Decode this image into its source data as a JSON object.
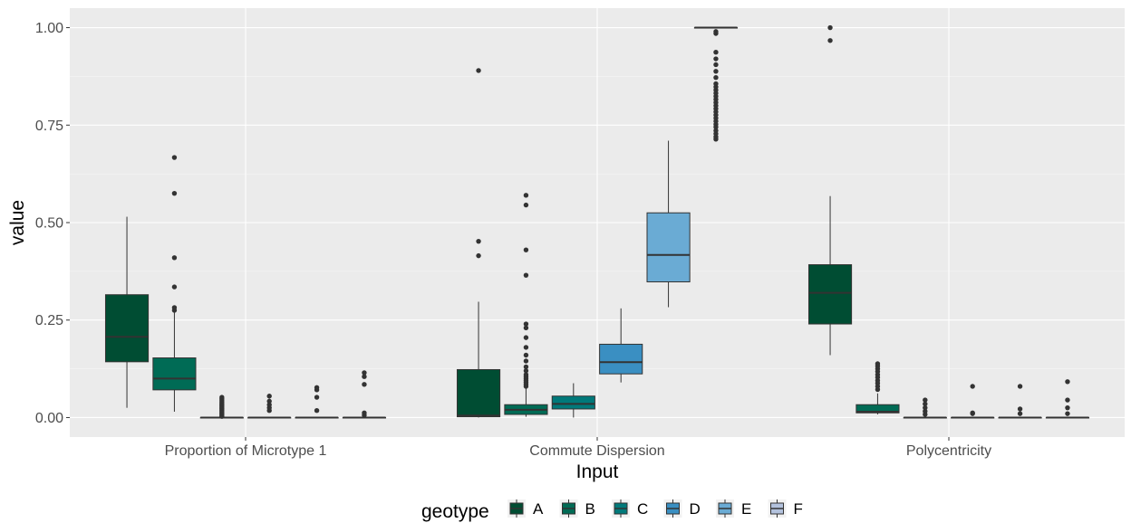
{
  "chart_data": {
    "type": "boxplot",
    "xlabel": "Input",
    "ylabel": "value",
    "ylim": [
      -0.05,
      1.05
    ],
    "yticks": [
      0.0,
      0.25,
      0.5,
      0.75,
      1.0
    ],
    "ytick_labels": [
      "0.00",
      "0.25",
      "0.50",
      "0.75",
      "1.00"
    ],
    "grid": true,
    "legend": {
      "title": "geotype",
      "position": "bottom"
    },
    "categories": [
      "Proportion of Microtype 1",
      "Commute Dispersion",
      "Polycentricity"
    ],
    "series": [
      {
        "name": "A",
        "color": "#004d33"
      },
      {
        "name": "B",
        "color": "#006b55"
      },
      {
        "name": "C",
        "color": "#00797a"
      },
      {
        "name": "D",
        "color": "#3a8fc2"
      },
      {
        "name": "E",
        "color": "#6aabd4"
      },
      {
        "name": "F",
        "color": "#b3c2dd"
      }
    ],
    "boxes": [
      {
        "category": "Proportion of Microtype 1",
        "series": "A",
        "whisker_low": 0.025,
        "q1": 0.143,
        "median": 0.207,
        "q3": 0.315,
        "whisker_high": 0.515,
        "outliers": []
      },
      {
        "category": "Proportion of Microtype 1",
        "series": "B",
        "whisker_low": 0.015,
        "q1": 0.071,
        "median": 0.1,
        "q3": 0.153,
        "whisker_high": 0.27,
        "outliers": [
          0.275,
          0.282,
          0.335,
          0.41,
          0.575,
          0.667
        ]
      },
      {
        "category": "Proportion of Microtype 1",
        "series": "C",
        "whisker_low": 0.0,
        "q1": 0.0,
        "median": 0.0,
        "q3": 0.0,
        "whisker_high": 0.0,
        "outliers": [
          0.003,
          0.006,
          0.009,
          0.012,
          0.015,
          0.018,
          0.021,
          0.024,
          0.027,
          0.03,
          0.033,
          0.036,
          0.04,
          0.044,
          0.048,
          0.052
        ]
      },
      {
        "category": "Proportion of Microtype 1",
        "series": "D",
        "whisker_low": 0.0,
        "q1": 0.0,
        "median": 0.0,
        "q3": 0.0,
        "whisker_high": 0.0,
        "outliers": [
          0.018,
          0.025,
          0.033,
          0.042,
          0.055
        ]
      },
      {
        "category": "Proportion of Microtype 1",
        "series": "E",
        "whisker_low": 0.0,
        "q1": 0.0,
        "median": 0.0,
        "q3": 0.0,
        "whisker_high": 0.0,
        "outliers": [
          0.018,
          0.052,
          0.071,
          0.077
        ]
      },
      {
        "category": "Proportion of Microtype 1",
        "series": "F",
        "whisker_low": 0.0,
        "q1": 0.0,
        "median": 0.0,
        "q3": 0.0,
        "whisker_high": 0.0,
        "outliers": [
          0.006,
          0.012,
          0.085,
          0.105,
          0.115
        ]
      },
      {
        "category": "Commute Dispersion",
        "series": "A",
        "whisker_low": 0.0,
        "q1": 0.002,
        "median": 0.005,
        "q3": 0.123,
        "whisker_high": 0.297,
        "outliers": [
          0.415,
          0.452,
          0.89
        ]
      },
      {
        "category": "Commute Dispersion",
        "series": "B",
        "whisker_low": 0.002,
        "q1": 0.008,
        "median": 0.02,
        "q3": 0.033,
        "whisker_high": 0.075,
        "outliers": [
          0.08,
          0.085,
          0.09,
          0.095,
          0.1,
          0.105,
          0.11,
          0.12,
          0.13,
          0.145,
          0.16,
          0.18,
          0.205,
          0.23,
          0.24,
          0.365,
          0.43,
          0.545,
          0.57
        ]
      },
      {
        "category": "Commute Dispersion",
        "series": "C",
        "whisker_low": 0.0,
        "q1": 0.022,
        "median": 0.035,
        "q3": 0.055,
        "whisker_high": 0.088,
        "outliers": []
      },
      {
        "category": "Commute Dispersion",
        "series": "D",
        "whisker_low": 0.09,
        "q1": 0.112,
        "median": 0.142,
        "q3": 0.188,
        "whisker_high": 0.28,
        "outliers": []
      },
      {
        "category": "Commute Dispersion",
        "series": "E",
        "whisker_low": 0.283,
        "q1": 0.348,
        "median": 0.417,
        "q3": 0.525,
        "whisker_high": 0.71,
        "outliers": []
      },
      {
        "category": "Commute Dispersion",
        "series": "F",
        "whisker_low": 1.0,
        "q1": 1.0,
        "median": 1.0,
        "q3": 1.0,
        "whisker_high": 1.0,
        "outliers": [
          0.714,
          0.72,
          0.728,
          0.736,
          0.745,
          0.752,
          0.76,
          0.768,
          0.776,
          0.784,
          0.792,
          0.8,
          0.808,
          0.816,
          0.824,
          0.832,
          0.84,
          0.848,
          0.856,
          0.872,
          0.888,
          0.905,
          0.92,
          0.937,
          0.985,
          0.99
        ]
      },
      {
        "category": "Polycentricity",
        "series": "A",
        "whisker_low": 0.16,
        "q1": 0.24,
        "median": 0.32,
        "q3": 0.392,
        "whisker_high": 0.568,
        "outliers": [
          0.967,
          1.0
        ]
      },
      {
        "category": "Polycentricity",
        "series": "B",
        "whisker_low": 0.008,
        "q1": 0.012,
        "median": 0.015,
        "q3": 0.033,
        "whisker_high": 0.062,
        "outliers": [
          0.072,
          0.08,
          0.088,
          0.095,
          0.103,
          0.11,
          0.118,
          0.125,
          0.132,
          0.138
        ]
      },
      {
        "category": "Polycentricity",
        "series": "C",
        "whisker_low": 0.0,
        "q1": 0.0,
        "median": 0.0,
        "q3": 0.0,
        "whisker_high": 0.0,
        "outliers": [
          0.008,
          0.016,
          0.025,
          0.035,
          0.045
        ]
      },
      {
        "category": "Polycentricity",
        "series": "D",
        "whisker_low": 0.0,
        "q1": 0.0,
        "median": 0.0,
        "q3": 0.0,
        "whisker_high": 0.0,
        "outliers": [
          0.01,
          0.012,
          0.08
        ]
      },
      {
        "category": "Polycentricity",
        "series": "E",
        "whisker_low": 0.0,
        "q1": 0.0,
        "median": 0.0,
        "q3": 0.0,
        "whisker_high": 0.0,
        "outliers": [
          0.01,
          0.022,
          0.08
        ]
      },
      {
        "category": "Polycentricity",
        "series": "F",
        "whisker_low": 0.0,
        "q1": 0.0,
        "median": 0.0,
        "q3": 0.0,
        "whisker_high": 0.0,
        "outliers": [
          0.01,
          0.025,
          0.045,
          0.092
        ]
      }
    ]
  }
}
